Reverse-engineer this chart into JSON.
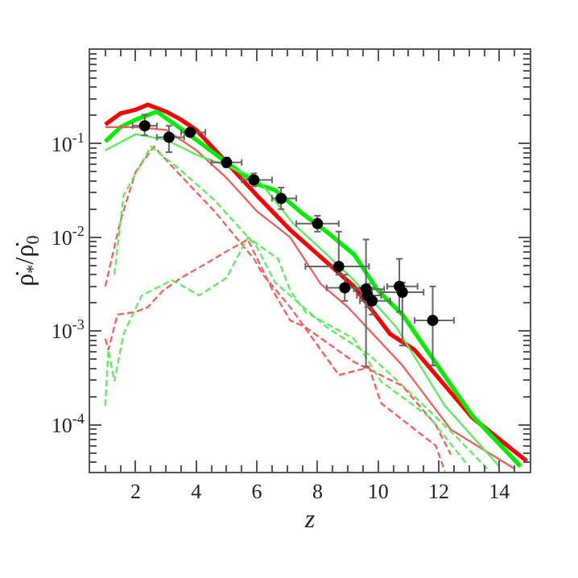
{
  "chart_data": {
    "type": "line",
    "xlabel": "z",
    "ylabel": "ρ̇$_{*}$/ρ̇$_{0}$",
    "xlim": [
      0.5,
      15
    ],
    "xticks": [
      2,
      4,
      6,
      8,
      10,
      12,
      14
    ],
    "ylim": [
      3.16e-05,
      1
    ],
    "yticks": [
      {
        "value": 0.0001,
        "label": "10$^{-4}$"
      },
      {
        "value": 0.001,
        "label": "10$^{-3}$"
      },
      {
        "value": 0.01,
        "label": "10$^{-2}$"
      },
      {
        "value": 0.1,
        "label": "10$^{-1}$"
      }
    ],
    "log": "y",
    "grid": false,
    "marker": "none",
    "series": [
      {
        "color": "#ff0000",
        "line_style": "solid",
        "x": [
          1,
          1.5,
          2,
          2.4,
          3,
          3.5,
          4,
          5,
          6,
          7.1,
          8.2,
          9.2,
          10.4,
          11.2,
          13.1,
          14.9
        ],
        "values": [
          0.16,
          0.21,
          0.23,
          0.26,
          0.22,
          0.18,
          0.14,
          0.063,
          0.028,
          0.012,
          0.0058,
          0.003,
          0.00093,
          0.00063,
          0.00012,
          4.1e-05
        ]
      },
      {
        "color": "#00ee00",
        "line_style": "solid",
        "x": [
          1,
          1.5,
          2,
          2.7,
          3.3,
          4,
          5,
          6,
          6.6,
          7.5,
          8.3,
          9.2,
          10,
          10.8,
          13.1,
          14.7
        ],
        "values": [
          0.105,
          0.15,
          0.18,
          0.22,
          0.16,
          0.11,
          0.063,
          0.037,
          0.032,
          0.018,
          0.0115,
          0.0066,
          0.0027,
          0.0015,
          0.000126,
          3.6e-05
        ]
      },
      {
        "color": "#ff5555",
        "line_style": "solid",
        "x": [
          1,
          2,
          3,
          4,
          5,
          6,
          7.1,
          8.1,
          9,
          10.8,
          12.4,
          14.5
        ],
        "values": [
          0.15,
          0.15,
          0.14,
          0.085,
          0.043,
          0.019,
          0.01,
          0.0032,
          0.0018,
          0.00043,
          8.9e-05,
          3.4e-05
        ]
      },
      {
        "color": "#55ee55",
        "line_style": "solid",
        "x": [
          1,
          2,
          3,
          4,
          5,
          6,
          7.2,
          8.3,
          9.2,
          10.6,
          12.2,
          14
        ],
        "values": [
          0.085,
          0.126,
          0.11,
          0.076,
          0.058,
          0.043,
          0.014,
          0.0066,
          0.0035,
          0.0011,
          0.00016,
          3.6e-05
        ]
      },
      {
        "color": "#ff5555",
        "line_style": "dashed",
        "x": [
          1,
          1.5,
          2,
          2.6,
          3.5,
          4.6,
          5.9,
          6.2,
          7.1,
          8.7,
          9.7,
          10.1,
          11.9,
          12.2
        ],
        "values": [
          0.003,
          0.015,
          0.05,
          0.093,
          0.045,
          0.019,
          0.0059,
          0.004,
          0.0018,
          0.00034,
          0.00041,
          0.00017,
          6e-05,
          3.2e-05
        ]
      },
      {
        "color": "#55ee55",
        "line_style": "dashed",
        "x": [
          1.3,
          1.6,
          2.5,
          3.4,
          4.6,
          6,
          6.6,
          8.3,
          9.7,
          11.2,
          12.5,
          13.6
        ],
        "values": [
          0.004,
          0.028,
          0.093,
          0.055,
          0.025,
          0.0079,
          0.0033,
          0.0011,
          0.00056,
          0.0002,
          7.9e-05,
          3.4e-05
        ]
      },
      {
        "color": "#ff5555",
        "line_style": "dashed",
        "x": [
          1,
          1.1,
          1.4,
          2,
          2.4,
          2.9,
          3.5,
          4.3,
          4.9,
          5.7,
          6.5,
          7.1,
          7.6,
          9.2,
          10.8,
          11.9,
          12.4
        ],
        "values": [
          0.00083,
          0.00063,
          0.0015,
          0.0016,
          0.0018,
          0.0027,
          0.0037,
          0.0052,
          0.0068,
          0.0095,
          0.0028,
          0.0013,
          0.0011,
          0.00047,
          0.00026,
          0.0001,
          4.8e-05
        ]
      },
      {
        "color": "#55ee55",
        "line_style": "dashed",
        "x": [
          1,
          1.1,
          1.3,
          1.6,
          2.2,
          3.2,
          4.1,
          5,
          5.7,
          6.7,
          7.1,
          7.6,
          9.2,
          10.1,
          11.7,
          12.9
        ],
        "values": [
          0.00016,
          0.00063,
          0.00029,
          0.00093,
          0.0024,
          0.0035,
          0.0024,
          0.0037,
          0.01,
          0.0059,
          0.0027,
          0.0016,
          0.00083,
          0.00029,
          0.00012,
          3.9e-05
        ]
      },
      {
        "type": "scatter",
        "color": "#000000",
        "marker": "circle",
        "x": [
          2.3,
          3.1,
          3.8,
          5.0,
          5.9,
          6.8,
          8.0,
          8.7,
          8.9,
          9.6,
          9.65,
          9.8,
          10.7,
          10.8,
          11.8
        ],
        "values": [
          0.155,
          0.117,
          0.132,
          0.063,
          0.041,
          0.026,
          0.014,
          0.0049,
          0.0029,
          0.0028,
          0.0024,
          0.0021,
          0.003,
          0.0026,
          0.0013
        ],
        "errors": [
          [
            0.123,
            0.204
          ],
          [
            0.081,
            0.155
          ],
          [
            0.123,
            0.145
          ],
          [
            0.056,
            0.071
          ],
          [
            0.035,
            0.048
          ],
          [
            0.02,
            0.034
          ],
          [
            0.0115,
            0.017
          ],
          [
            0.004,
            0.0115
          ],
          [
            0.0021,
            0.004
          ],
          [
            0.00042,
            0.0095
          ],
          [
            0.0018,
            0.0032
          ],
          [
            0.0015,
            0.0029
          ],
          [
            0.0016,
            0.0059
          ],
          [
            0.0007,
            0.0033
          ],
          [
            0.00043,
            0.003
          ]
        ],
        "xerrors": [
          [
            1.9,
            2.7
          ],
          [
            2.7,
            3.6
          ],
          [
            3.5,
            4.3
          ],
          [
            4.5,
            5.5
          ],
          [
            5.5,
            6.5
          ],
          [
            6.5,
            7.3
          ],
          [
            7.3,
            8.7
          ],
          [
            7.6,
            9.7
          ],
          [
            8.3,
            9.5
          ],
          [
            9.2,
            10.2
          ],
          [
            9.3,
            10.1
          ],
          [
            9.4,
            10.4
          ],
          [
            10.3,
            11.3
          ],
          [
            10.1,
            11.5
          ],
          [
            11.2,
            12.5
          ]
        ]
      }
    ]
  }
}
